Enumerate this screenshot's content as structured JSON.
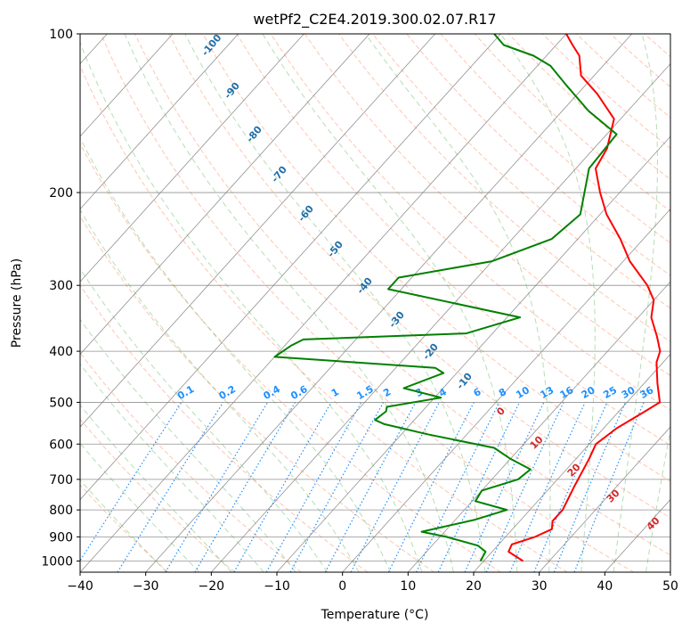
{
  "chart_data": {
    "type": "line",
    "subtype": "skew-t log-p diagram",
    "title": "wetPf2_C2E4.2019.300.02.07.R17",
    "xlabel": "Temperature (°C)",
    "ylabel": "Pressure (hPa)",
    "xlim": [
      -40,
      50
    ],
    "ylim": [
      1050,
      100
    ],
    "y_scale": "log",
    "grid": true,
    "x_ticks": [
      -40,
      -30,
      -20,
      -10,
      0,
      10,
      20,
      30,
      40,
      50
    ],
    "x_tick_labels": [
      "−40",
      "−30",
      "−20",
      "−10",
      "0",
      "10",
      "20",
      "30",
      "40",
      "50"
    ],
    "y_ticks": [
      1000,
      900,
      800,
      700,
      600,
      500,
      400,
      300,
      200,
      100
    ],
    "y_tick_labels": [
      "1000",
      "900",
      "800",
      "700",
      "600",
      "500",
      "400",
      "300",
      "200",
      "100"
    ],
    "colors": {
      "temperature": "#ff0000",
      "dewpoint": "#008000",
      "isotherm": "#808080",
      "dry_adiabat": "#ff7f50",
      "moist_adiabat": "#2ca02c",
      "mixing_ratio": "#1e90ff",
      "dry_label": "#1f6fa8",
      "moist_label": "#d62728",
      "mixing_label": "#1e90ff"
    },
    "series": [
      {
        "kind": "temperature",
        "points": [
          [
            26.0,
            1000
          ],
          [
            22.5,
            960
          ],
          [
            22.0,
            930
          ],
          [
            24.5,
            900
          ],
          [
            26.0,
            870
          ],
          [
            25.0,
            840
          ],
          [
            25.0,
            800
          ],
          [
            23.5,
            720
          ],
          [
            22.0,
            640
          ],
          [
            21.0,
            600
          ],
          [
            22.0,
            560
          ],
          [
            24.0,
            520
          ],
          [
            25.0,
            500
          ],
          [
            22.0,
            460
          ],
          [
            19.0,
            420
          ],
          [
            18.0,
            400
          ],
          [
            15.5,
            375
          ],
          [
            12.0,
            345
          ],
          [
            10.0,
            320
          ],
          [
            7.0,
            300
          ],
          [
            1.0,
            270
          ],
          [
            -3.5,
            245
          ],
          [
            -9.0,
            220
          ],
          [
            -13.0,
            200
          ],
          [
            -17.0,
            180
          ],
          [
            -18.0,
            165
          ],
          [
            -21.0,
            145
          ],
          [
            -27.0,
            130
          ],
          [
            -32.0,
            120
          ],
          [
            -35.0,
            110
          ],
          [
            -37.5,
            105
          ],
          [
            -40.0,
            100
          ]
        ]
      },
      {
        "kind": "dewpoint",
        "points": [
          [
            19.5,
            1000
          ],
          [
            19.0,
            960
          ],
          [
            17.0,
            935
          ],
          [
            11.0,
            900
          ],
          [
            6.5,
            880
          ],
          [
            13.0,
            835
          ],
          [
            16.5,
            800
          ],
          [
            10.5,
            770
          ],
          [
            10.0,
            735
          ],
          [
            14.0,
            700
          ],
          [
            14.5,
            670
          ],
          [
            10.0,
            640
          ],
          [
            6.0,
            610
          ],
          [
            -6.0,
            575
          ],
          [
            -14.0,
            550
          ],
          [
            -16.0,
            540
          ],
          [
            -15.5,
            520
          ],
          [
            -16.0,
            510
          ],
          [
            -9.0,
            490
          ],
          [
            -16.0,
            470
          ],
          [
            -12.0,
            440
          ],
          [
            -14.0,
            430
          ],
          [
            -40.0,
            410
          ],
          [
            -39.0,
            390
          ],
          [
            -38.0,
            380
          ],
          [
            -14.0,
            370
          ],
          [
            -8.0,
            345
          ],
          [
            -32.0,
            305
          ],
          [
            -32.0,
            290
          ],
          [
            -20.0,
            270
          ],
          [
            -14.0,
            245
          ],
          [
            -13.0,
            220
          ],
          [
            -18.0,
            180
          ],
          [
            -18.5,
            155
          ],
          [
            -26.0,
            140
          ],
          [
            -33.0,
            125
          ],
          [
            -38.0,
            115
          ],
          [
            -42.0,
            110
          ],
          [
            -48.0,
            105
          ],
          [
            -51.0,
            100
          ]
        ]
      }
    ],
    "dry_adiabat_labels": [
      "-100",
      "-90",
      "-80",
      "-70",
      "-60",
      "-50",
      "-40",
      "-30",
      "-20",
      "-10"
    ],
    "moist_adiabat_labels": [
      "0",
      "10",
      "20",
      "30",
      "40"
    ],
    "mixing_ratio_labels": [
      "0.1",
      "0.2",
      "0.4",
      "0.6",
      "1",
      "1.5",
      "2",
      "3",
      "4",
      "6",
      "8",
      "10",
      "13",
      "16",
      "20",
      "25",
      "30",
      "36"
    ]
  }
}
